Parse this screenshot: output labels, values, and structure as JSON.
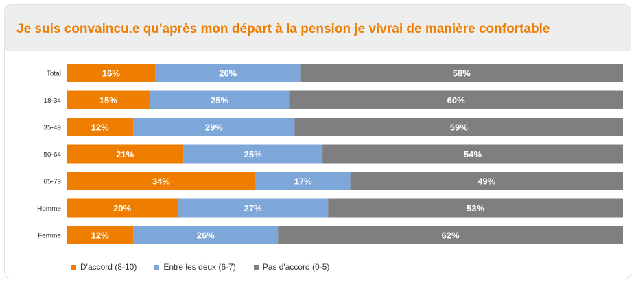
{
  "title": "Je suis convaincu.e qu'après mon départ à la pension je vivrai de manière confortable",
  "chart_data": {
    "type": "bar",
    "orientation": "horizontal",
    "stacked": true,
    "title": "Je suis convaincu.e qu'après mon départ à la pension je vivrai de manière confortable",
    "categories": [
      "Total",
      "18-34",
      "35-49",
      "50-64",
      "65-79",
      "Homme",
      "Femme"
    ],
    "series": [
      {
        "name": "D'accord (8-10)",
        "color": "#ef7d00",
        "values": [
          16,
          15,
          12,
          21,
          34,
          20,
          12
        ]
      },
      {
        "name": "Entre les deux (6-7)",
        "color": "#7da7d9",
        "values": [
          26,
          25,
          29,
          25,
          17,
          27,
          26
        ]
      },
      {
        "name": "Pas d'accord (0-5)",
        "color": "#7f7f7f",
        "values": [
          58,
          60,
          59,
          54,
          49,
          53,
          62
        ]
      }
    ],
    "value_suffix": "%",
    "xlim": [
      0,
      100
    ],
    "grid": false,
    "legend_position": "bottom-left"
  }
}
